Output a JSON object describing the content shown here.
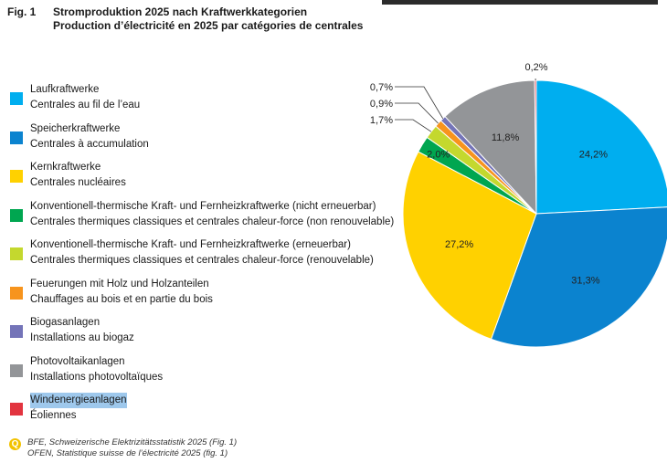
{
  "header": {
    "fig_label": "Fig. 1",
    "title_de": "Stromproduktion 2025 nach Kraftwerkkategorien",
    "title_fr": "Production d’électricité en 2025 par catégories de centrales"
  },
  "chart_data": {
    "type": "pie",
    "title": "Stromproduktion 2025 nach Kraftwerkkategorien",
    "subtitle": "Production d’électricité en 2025 par catégories de centrales",
    "start_angle_deg": 0,
    "direction": "clockwise",
    "legend_position": "left",
    "slices": [
      {
        "name": "Laufkraftwerke",
        "name_fr": "Centrales au fil de l’eau",
        "value": 24.2,
        "label": "24,2%",
        "color": "#00aeef"
      },
      {
        "name": "Speicherkraftwerke",
        "name_fr": "Centrales à accumulation",
        "value": 31.3,
        "label": "31,3%",
        "color": "#0b83cf"
      },
      {
        "name": "Kernkraftwerke",
        "name_fr": "Centrales nucléaires",
        "value": 27.2,
        "label": "27,2%",
        "color": "#ffd100"
      },
      {
        "name": "Konventionell-thermische Kraft- und Fernheizkraftwerke (nicht erneuerbar)",
        "name_fr": "Centrales thermiques classiques et centrales chaleur-force (non renouvelable)",
        "value": 2.0,
        "label": "2,0%",
        "color": "#00a650"
      },
      {
        "name": "Konventionell-thermische Kraft- und Fernheizkraftwerke (erneuerbar)",
        "name_fr": "Centrales thermiques classiques et centrales chaleur-force (renouvelable)",
        "value": 1.7,
        "label": "1,7%",
        "color": "#c4d82e"
      },
      {
        "name": "Feuerungen mit Holz und Holzanteilen",
        "name_fr": "Chauffages au bois et en partie du bois",
        "value": 0.9,
        "label": "0,9%",
        "color": "#f7941d"
      },
      {
        "name": "Biogasanlagen",
        "name_fr": "Installations au biogaz",
        "value": 0.7,
        "label": "0,7%",
        "color": "#7474b8"
      },
      {
        "name": "Photovoltaikanlagen",
        "name_fr": "Installations photovoltaïques",
        "value": 11.8,
        "label": "11,8%",
        "color": "#939598"
      },
      {
        "name": "Windenergieanlagen",
        "name_fr": "Éoliennes",
        "value": 0.2,
        "label": "0,2%",
        "color": "#e2343f"
      }
    ]
  },
  "source": {
    "icon_name": "source-info-icon",
    "line1": "BFE, Schweizerische Elektrizitätsstatistik 2025 (Fig. 1)",
    "line2": "OFEN, Statistique suisse de l’électricité 2025 (fig. 1)"
  }
}
